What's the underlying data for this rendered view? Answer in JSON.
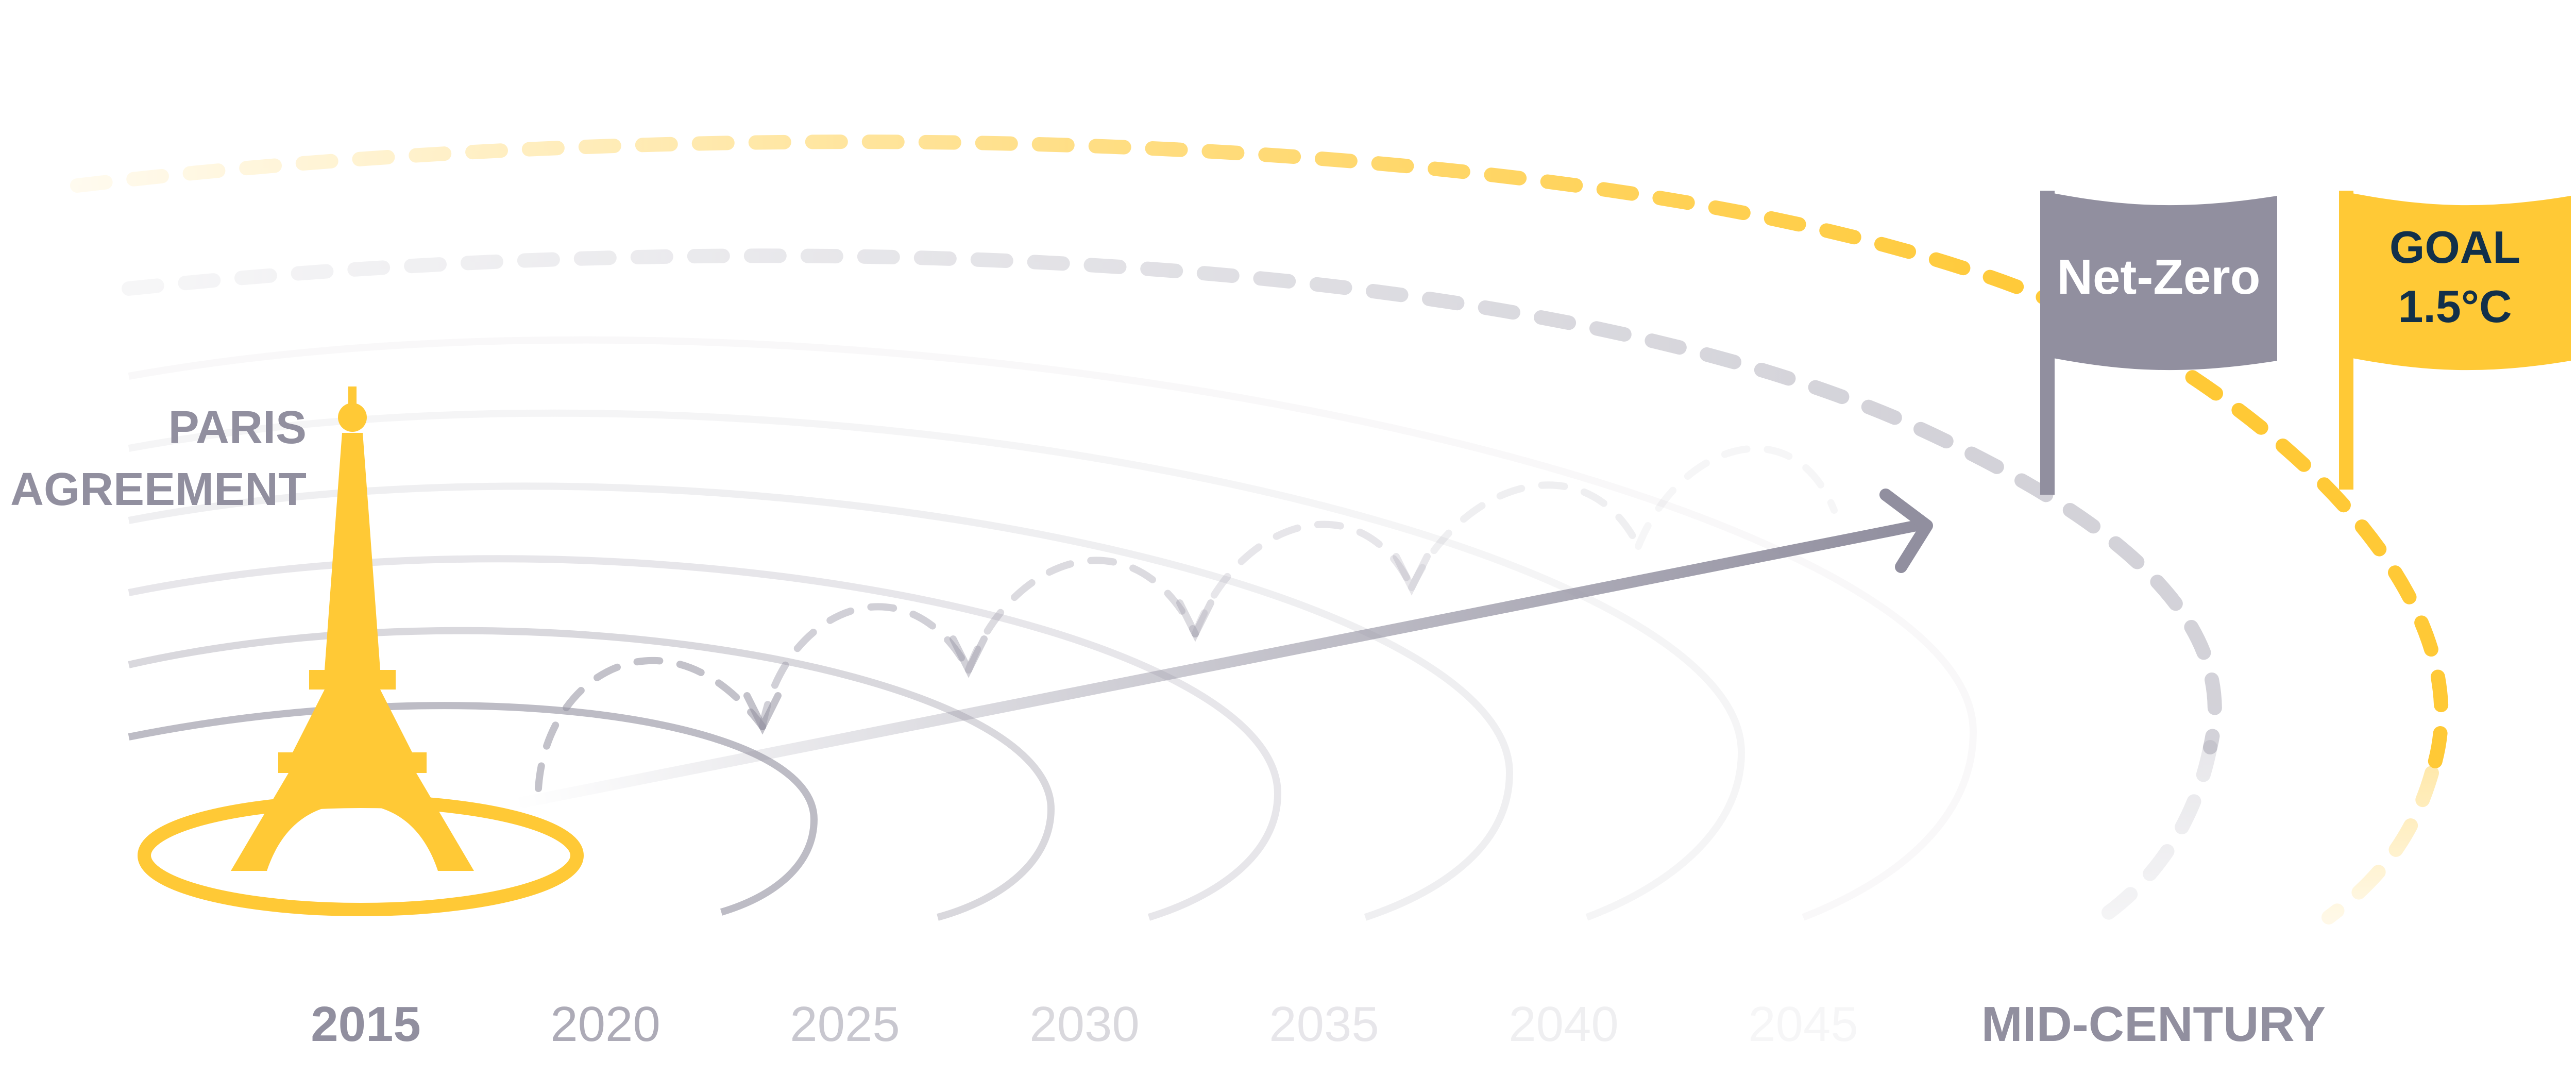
{
  "title": {
    "line1": "PARIS",
    "line2": "AGREEMENT"
  },
  "flags": {
    "net_zero": {
      "label": "Net-Zero"
    },
    "goal": {
      "line1": "GOAL",
      "line2": "1.5°C"
    }
  },
  "timeline": [
    {
      "label": "2015",
      "emphasis": "strong"
    },
    {
      "label": "2020",
      "emphasis": "medium"
    },
    {
      "label": "2025",
      "emphasis": "soft"
    },
    {
      "label": "2030",
      "emphasis": "faint"
    },
    {
      "label": "2035",
      "emphasis": "fainter"
    },
    {
      "label": "2040",
      "emphasis": "faintest"
    },
    {
      "label": "2045",
      "emphasis": "ghost"
    },
    {
      "label": "MID-CENTURY",
      "emphasis": "strong"
    }
  ],
  "colors": {
    "yellow": "#FFC936",
    "gray": "#918F9F",
    "navy": "#12304A",
    "light_gray": "#D6D6DC",
    "white": "#FFFFFF"
  },
  "icons": {
    "landmark": "eiffel-tower-icon",
    "arrow": "trend-arrow-icon"
  }
}
